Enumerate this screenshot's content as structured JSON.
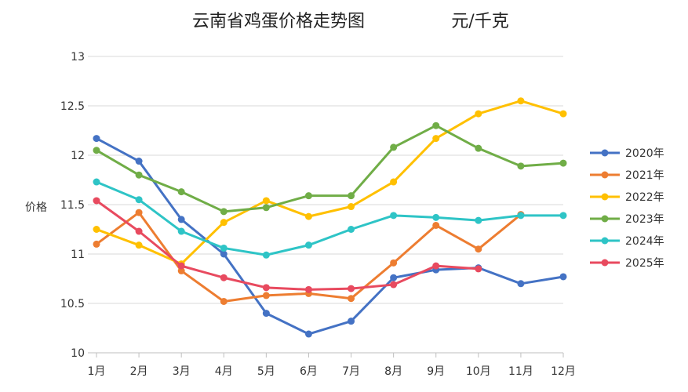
{
  "chart_data": {
    "type": "line",
    "title": "云南省鸡蛋价格走势图",
    "unit": "元/千克",
    "xlabel": "",
    "ylabel": "价格",
    "ylim": [
      10,
      13
    ],
    "yticks": [
      10,
      10.5,
      11,
      11.5,
      12,
      12.5,
      13
    ],
    "ytick_labels": [
      "10",
      "10.5",
      "11",
      "11.5",
      "12",
      "12.5",
      "13"
    ],
    "grid": true,
    "legend_position": "right",
    "categories": [
      "1月",
      "2月",
      "3月",
      "4月",
      "5月",
      "6月",
      "7月",
      "8月",
      "9月",
      "10月",
      "11月",
      "12月"
    ],
    "series": [
      {
        "name": "2020年",
        "color": "#4472C4",
        "values": [
          12.17,
          11.94,
          11.35,
          11.0,
          10.4,
          10.19,
          10.32,
          10.76,
          10.84,
          10.86,
          10.7,
          10.77
        ]
      },
      {
        "name": "2021年",
        "color": "#ED7D31",
        "values": [
          11.1,
          11.42,
          10.83,
          10.52,
          10.58,
          10.6,
          10.55,
          10.91,
          11.29,
          11.05,
          11.4,
          null
        ]
      },
      {
        "name": "2022年",
        "color": "#FFC000",
        "values": [
          11.25,
          11.09,
          10.9,
          11.32,
          11.54,
          11.38,
          11.48,
          11.73,
          12.17,
          12.42,
          12.55,
          12.42
        ]
      },
      {
        "name": "2023年",
        "color": "#70AD47",
        "values": [
          12.05,
          11.8,
          11.63,
          11.43,
          11.47,
          11.59,
          11.59,
          12.08,
          12.3,
          12.07,
          11.89,
          11.92
        ]
      },
      {
        "name": "2024年",
        "color": "#2EC4C6",
        "values": [
          11.73,
          11.55,
          11.23,
          11.06,
          10.99,
          11.09,
          11.25,
          11.39,
          11.37,
          11.34,
          11.39,
          11.39
        ]
      },
      {
        "name": "2025年",
        "color": "#E84A5F",
        "values": [
          11.54,
          11.23,
          10.88,
          10.76,
          10.66,
          10.64,
          10.65,
          10.69,
          10.88,
          10.85,
          null,
          null
        ]
      }
    ]
  }
}
